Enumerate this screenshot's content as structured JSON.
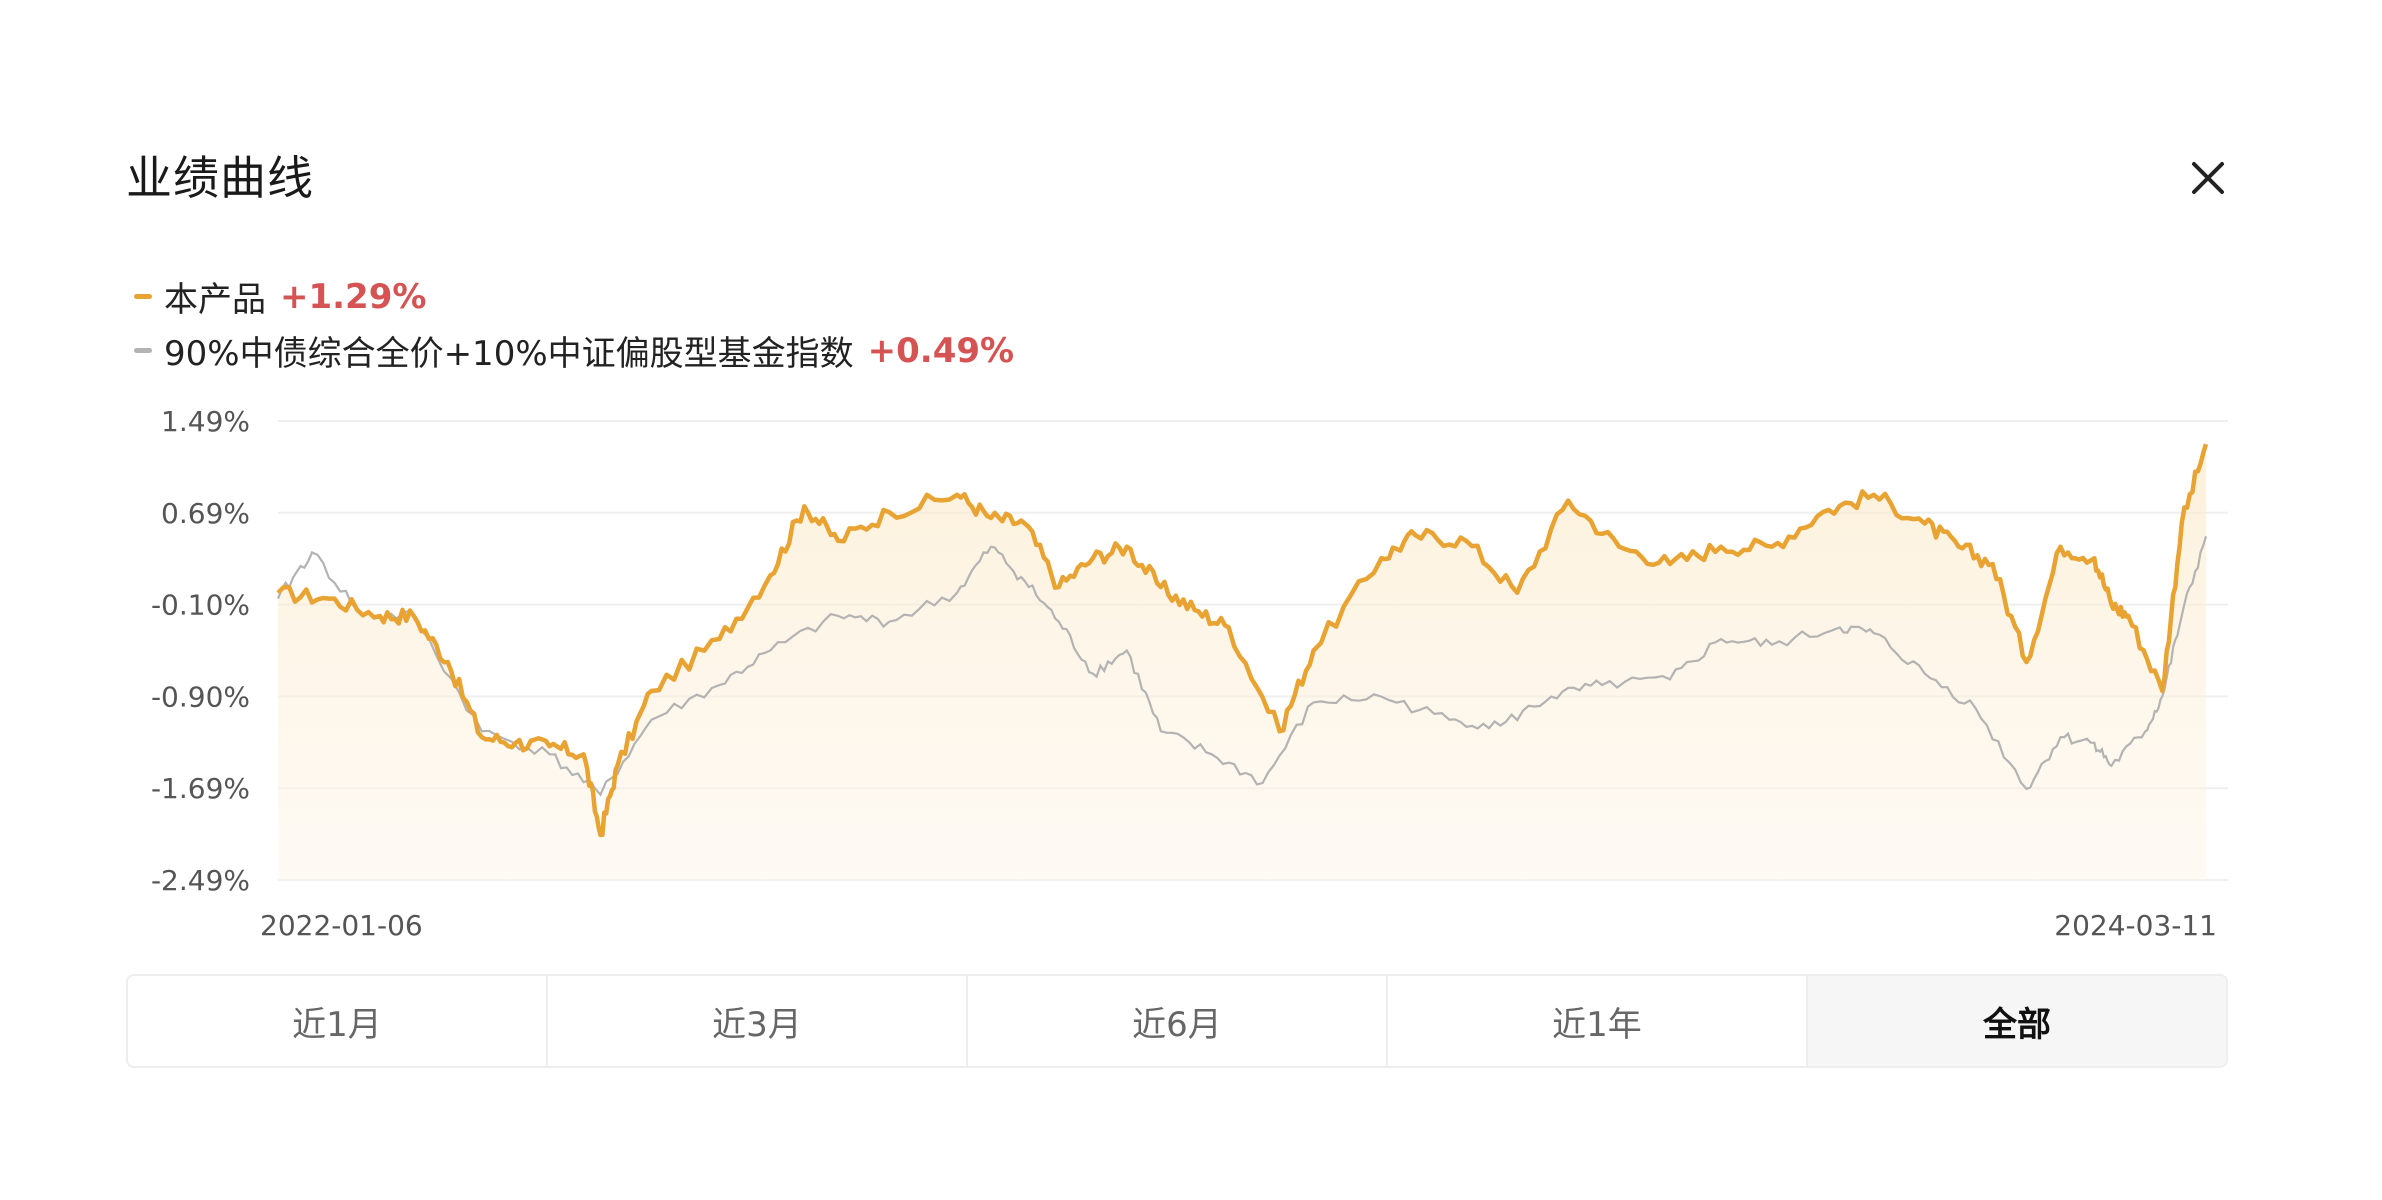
{
  "header": {
    "title": "业绩曲线",
    "close_icon": "close-icon"
  },
  "legend": [
    {
      "name": "本产品",
      "change": "+1.29%",
      "color": "#e8a332"
    },
    {
      "name": "90%中债综合全价+10%中证偏股型基金指数",
      "change": "+0.49%",
      "color": "#b3b3b3"
    }
  ],
  "chart_data": {
    "type": "area",
    "y_ticks": [
      "1.49%",
      "0.69%",
      "-0.10%",
      "-0.90%",
      "-1.69%",
      "-2.49%"
    ],
    "ylim": [
      -2.49,
      1.49
    ],
    "x_labels": [
      "2022-01-06",
      "2024-03-11"
    ],
    "grid": true,
    "series": [
      {
        "name": "本产品",
        "color": "#e8a332",
        "points": [
          [
            "2022-01-06",
            -0.0
          ],
          [
            "2022-01-27",
            -0.05
          ],
          [
            "2022-02-17",
            -0.2
          ],
          [
            "2022-03-03",
            -0.2
          ],
          [
            "2022-03-17",
            -0.6
          ],
          [
            "2022-03-31",
            -1.25
          ],
          [
            "2022-04-14",
            -1.3
          ],
          [
            "2022-04-28",
            -1.33
          ],
          [
            "2022-05-12",
            -1.4
          ],
          [
            "2022-05-19",
            -2.1
          ],
          [
            "2022-05-26",
            -1.5
          ],
          [
            "2022-06-09",
            -0.85
          ],
          [
            "2022-07-07",
            -0.4
          ],
          [
            "2022-07-28",
            0.15
          ],
          [
            "2022-08-11",
            0.75
          ],
          [
            "2022-08-25",
            0.45
          ],
          [
            "2022-09-15",
            0.7
          ],
          [
            "2022-10-13",
            0.85
          ],
          [
            "2022-10-27",
            0.65
          ],
          [
            "2022-11-10",
            0.6
          ],
          [
            "2022-11-24",
            0.05
          ],
          [
            "2022-12-08",
            0.3
          ],
          [
            "2022-12-22",
            0.4
          ],
          [
            "2023-01-05",
            0.05
          ],
          [
            "2023-01-19",
            -0.15
          ],
          [
            "2023-02-02",
            -0.3
          ],
          [
            "2023-02-23",
            -1.2
          ],
          [
            "2023-03-09",
            -0.5
          ],
          [
            "2023-04-06",
            0.3
          ],
          [
            "2023-04-20",
            0.5
          ],
          [
            "2023-05-11",
            0.45
          ],
          [
            "2023-06-01",
            0.0
          ],
          [
            "2023-06-22",
            0.8
          ],
          [
            "2023-07-13",
            0.4
          ],
          [
            "2023-08-03",
            0.25
          ],
          [
            "2023-08-24",
            0.4
          ],
          [
            "2023-09-14",
            0.4
          ],
          [
            "2023-10-05",
            0.7
          ],
          [
            "2023-10-26",
            0.85
          ],
          [
            "2023-11-16",
            0.6
          ],
          [
            "2023-11-30",
            0.4
          ],
          [
            "2023-12-14",
            0.25
          ],
          [
            "2023-12-28",
            -0.6
          ],
          [
            "2024-01-11",
            0.4
          ],
          [
            "2024-01-25",
            0.3
          ],
          [
            "2024-02-01",
            -0.1
          ],
          [
            "2024-02-08",
            -0.2
          ],
          [
            "2024-02-22",
            -0.85
          ],
          [
            "2024-03-01",
            0.6
          ],
          [
            "2024-03-11",
            1.29
          ]
        ]
      },
      {
        "name": "90%中债综合全价+10%中证偏股型基金指数",
        "color": "#b3b3b3",
        "points": [
          [
            "2022-01-06",
            -0.05
          ],
          [
            "2022-01-20",
            0.35
          ],
          [
            "2022-02-10",
            -0.2
          ],
          [
            "2022-03-03",
            -0.2
          ],
          [
            "2022-03-31",
            -1.2
          ],
          [
            "2022-04-28",
            -1.4
          ],
          [
            "2022-05-19",
            -1.75
          ],
          [
            "2022-06-09",
            -1.1
          ],
          [
            "2022-07-07",
            -0.8
          ],
          [
            "2022-07-28",
            -0.5
          ],
          [
            "2022-08-25",
            -0.2
          ],
          [
            "2022-09-15",
            -0.25
          ],
          [
            "2022-10-13",
            0.0
          ],
          [
            "2022-10-27",
            0.4
          ],
          [
            "2022-11-10",
            0.1
          ],
          [
            "2022-11-24",
            -0.25
          ],
          [
            "2022-12-08",
            -0.7
          ],
          [
            "2022-12-22",
            -0.5
          ],
          [
            "2023-01-05",
            -1.2
          ],
          [
            "2023-01-26",
            -1.4
          ],
          [
            "2023-02-16",
            -1.65
          ],
          [
            "2023-03-09",
            -0.95
          ],
          [
            "2023-04-06",
            -0.9
          ],
          [
            "2023-05-04",
            -1.1
          ],
          [
            "2023-05-25",
            -1.15
          ],
          [
            "2023-06-15",
            -0.9
          ],
          [
            "2023-07-06",
            -0.8
          ],
          [
            "2023-08-03",
            -0.75
          ],
          [
            "2023-08-24",
            -0.4
          ],
          [
            "2023-09-14",
            -0.45
          ],
          [
            "2023-10-12",
            -0.3
          ],
          [
            "2023-10-26",
            -0.35
          ],
          [
            "2023-11-16",
            -0.7
          ],
          [
            "2023-12-07",
            -1.0
          ],
          [
            "2023-12-28",
            -1.7
          ],
          [
            "2024-01-11",
            -1.25
          ],
          [
            "2024-01-25",
            -1.3
          ],
          [
            "2024-02-01",
            -1.5
          ],
          [
            "2024-02-15",
            -1.2
          ],
          [
            "2024-02-22",
            -0.9
          ],
          [
            "2024-03-01",
            -0.2
          ],
          [
            "2024-03-11",
            0.49
          ]
        ]
      }
    ]
  },
  "tabs": [
    {
      "label": "近1月",
      "active": false
    },
    {
      "label": "近3月",
      "active": false
    },
    {
      "label": "近6月",
      "active": false
    },
    {
      "label": "近1年",
      "active": false
    },
    {
      "label": "全部",
      "active": true
    }
  ]
}
